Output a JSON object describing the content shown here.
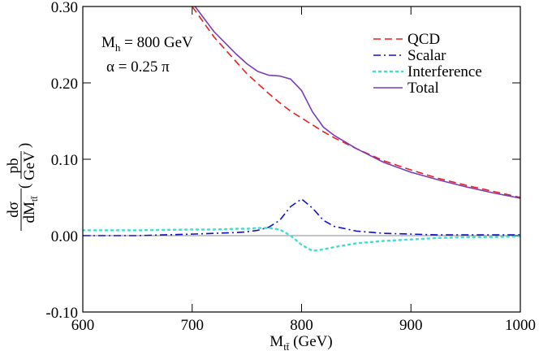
{
  "chart_data": {
    "type": "line",
    "annotations": [
      {
        "main": "M",
        "sub": "h",
        "rest": " = 800 GeV"
      },
      {
        "main": "α = 0.25 π"
      }
    ],
    "xlabel": {
      "main": "M",
      "sub": "tt̄",
      "rest": " (GeV)"
    },
    "ylabel": {
      "num": "dσ",
      "den": "dM",
      "den_sub": "tt̄",
      "unit_num": "pb",
      "unit_den": "GeV"
    },
    "x": [
      600,
      650,
      700,
      720,
      740,
      750,
      760,
      770,
      780,
      790,
      800,
      810,
      820,
      830,
      850,
      875,
      900,
      925,
      950,
      975,
      1000
    ],
    "series": [
      {
        "name": "QCD",
        "color": "#e8211d",
        "style": "dashed",
        "values": [
          null,
          null,
          0.3,
          0.26,
          0.228,
          0.212,
          0.199,
          0.186,
          0.174,
          0.163,
          0.154,
          0.145,
          0.136,
          0.128,
          0.114,
          0.098,
          0.086,
          0.075,
          0.066,
          0.058,
          0.05
        ]
      },
      {
        "name": "Scalar",
        "color": "#1010c8",
        "style": "dashdot",
        "values": [
          0.0,
          0.0,
          0.002,
          0.003,
          0.004,
          0.005,
          0.007,
          0.011,
          0.02,
          0.038,
          0.048,
          0.036,
          0.02,
          0.012,
          0.006,
          0.003,
          0.002,
          0.001,
          0.001,
          0.001,
          0.001
        ]
      },
      {
        "name": "Interference",
        "color": "#40e0d0",
        "style": "dotted",
        "values": [
          0.007,
          0.007,
          0.008,
          0.008,
          0.009,
          0.009,
          0.01,
          0.01,
          0.008,
          0.0,
          -0.012,
          -0.02,
          -0.018,
          -0.015,
          -0.01,
          -0.007,
          -0.005,
          -0.003,
          -0.002,
          -0.002,
          -0.001
        ]
      },
      {
        "name": "Total",
        "color": "#7a3cb8",
        "style": "solid",
        "values": [
          null,
          null,
          0.305,
          0.267,
          0.238,
          0.225,
          0.215,
          0.21,
          0.209,
          0.205,
          0.19,
          0.162,
          0.142,
          0.131,
          0.114,
          0.096,
          0.083,
          0.073,
          0.064,
          0.056,
          0.049
        ]
      }
    ],
    "xlim": [
      600,
      1000
    ],
    "xticks": [
      600,
      700,
      800,
      900,
      1000
    ],
    "ylim": [
      -0.1,
      0.3
    ],
    "yticks": [
      {
        "value": 0.3,
        "label": "0.30"
      },
      {
        "value": 0.2,
        "label": "0.20"
      },
      {
        "value": 0.1,
        "label": "0.10"
      },
      {
        "value": 0,
        "label": "0.00"
      },
      {
        "value": -0.1,
        "label": "-0.10"
      }
    ],
    "zero_line": true,
    "legend": "upper right"
  }
}
